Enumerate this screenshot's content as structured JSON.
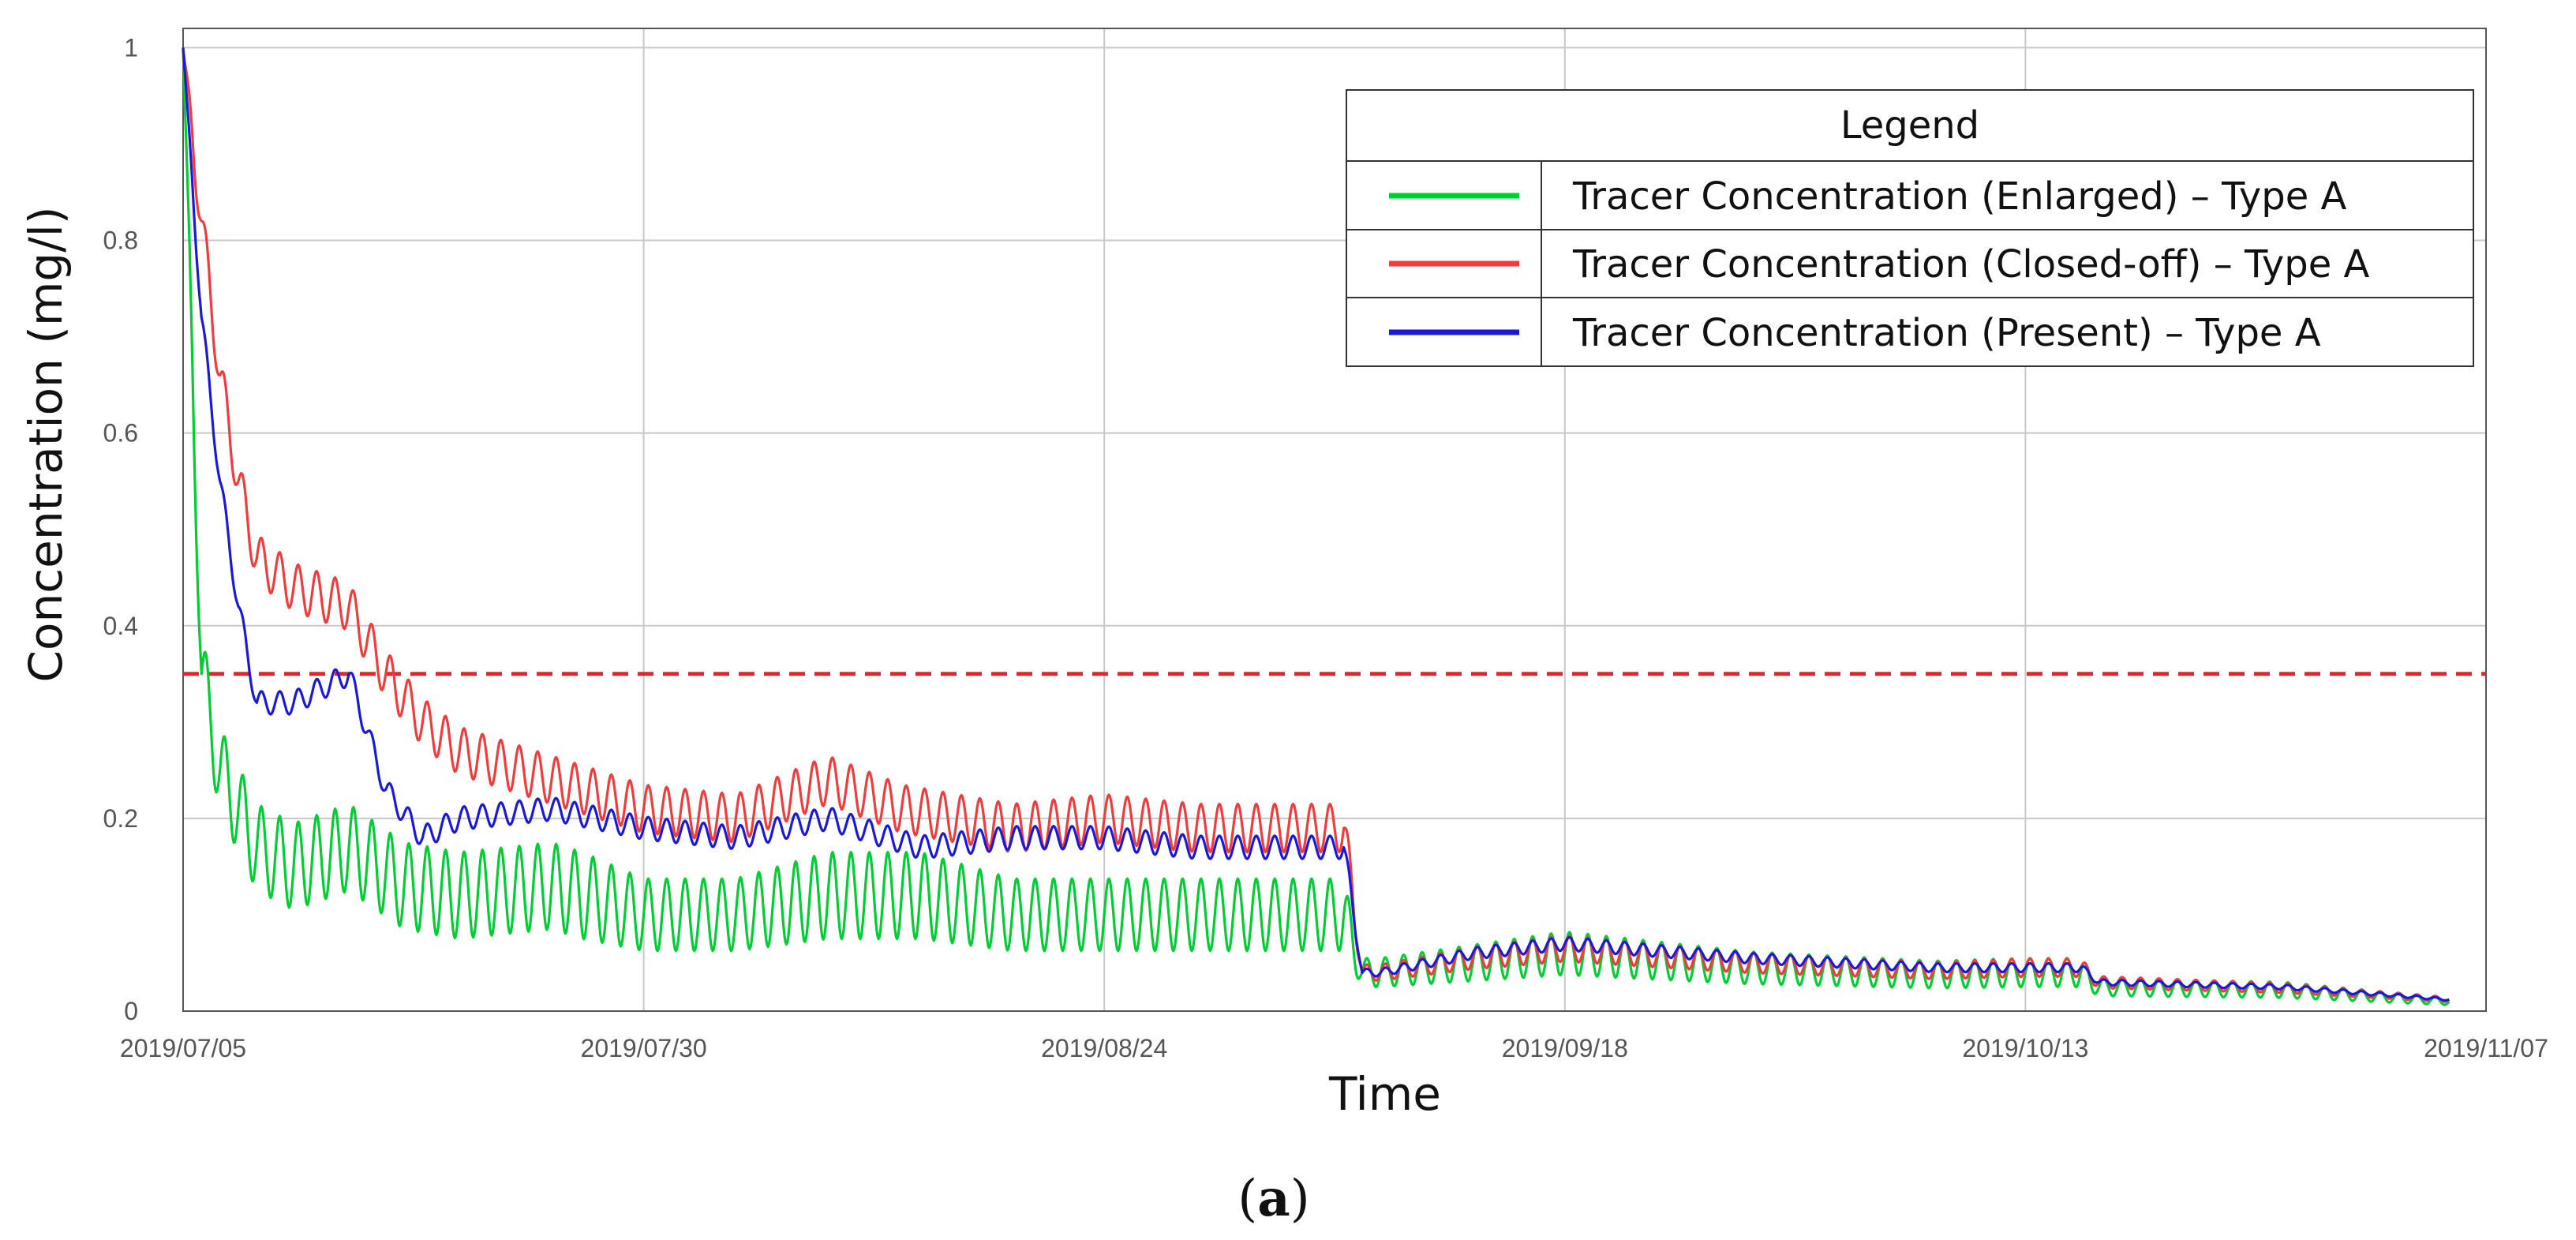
{
  "chart_data": {
    "type": "line",
    "title": "",
    "xlabel": "Time",
    "ylabel": "Concentration (mg/l)",
    "panel_label": "a",
    "x_ticks": [
      "2019/07/05",
      "2019/07/30",
      "2019/08/24",
      "2019/09/18",
      "2019/10/13",
      "2019/11/07"
    ],
    "y_ticks": [
      "0",
      "0.2",
      "0.4",
      "0.6",
      "0.8",
      "1"
    ],
    "xlim": [
      "2019/07/05",
      "2019/11/07"
    ],
    "ylim": [
      0,
      1.02
    ],
    "grid": true,
    "legend": {
      "title": "Legend",
      "position": "top-right"
    },
    "reference_line": {
      "y": 0.35,
      "color": "#e8242b",
      "style": "dashed"
    },
    "series": [
      {
        "name": "Tracer Concentration (Enlarged) – Type A",
        "color": "#00cc33",
        "oscillation": {
          "amplitude": 0.045,
          "period_days": 1.0
        },
        "x": [
          "2019/07/05",
          "2019/07/06",
          "2019/07/07",
          "2019/07/09",
          "2019/07/11",
          "2019/07/14",
          "2019/07/17",
          "2019/07/20",
          "2019/07/25",
          "2019/07/30",
          "2019/08/04",
          "2019/08/09",
          "2019/08/14",
          "2019/08/19",
          "2019/08/24",
          "2019/08/29",
          "2019/09/03",
          "2019/09/06",
          "2019/09/07",
          "2019/09/08",
          "2019/09/13",
          "2019/09/18",
          "2019/09/28",
          "2019/10/08",
          "2019/10/13",
          "2019/10/16",
          "2019/10/17",
          "2019/10/27",
          "2019/11/05"
        ],
        "y": [
          1.0,
          0.35,
          0.25,
          0.17,
          0.15,
          0.17,
          0.13,
          0.12,
          0.13,
          0.1,
          0.1,
          0.12,
          0.12,
          0.1,
          0.1,
          0.1,
          0.1,
          0.1,
          0.04,
          0.04,
          0.05,
          0.06,
          0.045,
          0.038,
          0.04,
          0.04,
          0.025,
          0.022,
          0.01
        ]
      },
      {
        "name": "Tracer Concentration (Closed-off) – Type A",
        "color": "#f03c3c",
        "oscillation": {
          "amplitude": 0.025,
          "period_days": 1.0
        },
        "x": [
          "2019/07/05",
          "2019/07/06",
          "2019/07/07",
          "2019/07/08",
          "2019/07/09",
          "2019/07/11",
          "2019/07/14",
          "2019/07/16",
          "2019/07/18",
          "2019/07/20",
          "2019/07/25",
          "2019/07/30",
          "2019/08/04",
          "2019/08/09",
          "2019/08/13",
          "2019/08/19",
          "2019/08/24",
          "2019/08/29",
          "2019/09/06",
          "2019/09/07",
          "2019/09/08",
          "2019/09/13",
          "2019/09/18",
          "2019/09/28",
          "2019/10/08",
          "2019/10/13",
          "2019/10/16",
          "2019/10/17",
          "2019/10/27",
          "2019/11/05"
        ],
        "y": [
          1.0,
          0.82,
          0.66,
          0.55,
          0.47,
          0.44,
          0.42,
          0.35,
          0.3,
          0.27,
          0.24,
          0.21,
          0.2,
          0.24,
          0.21,
          0.19,
          0.2,
          0.19,
          0.19,
          0.04,
          0.04,
          0.055,
          0.065,
          0.05,
          0.042,
          0.045,
          0.045,
          0.03,
          0.024,
          0.012
        ]
      },
      {
        "name": "Tracer Concentration (Present) – Type A",
        "color": "#1a1ad6",
        "oscillation": {
          "amplitude": 0.012,
          "period_days": 1.0
        },
        "x": [
          "2019/07/05",
          "2019/07/06",
          "2019/07/07",
          "2019/07/08",
          "2019/07/09",
          "2019/07/11",
          "2019/07/13",
          "2019/07/14",
          "2019/07/16",
          "2019/07/18",
          "2019/07/20",
          "2019/07/25",
          "2019/07/30",
          "2019/08/04",
          "2019/08/09",
          "2019/08/14",
          "2019/08/19",
          "2019/08/24",
          "2019/08/29",
          "2019/09/06",
          "2019/09/07",
          "2019/09/08",
          "2019/09/13",
          "2019/09/18",
          "2019/09/28",
          "2019/10/08",
          "2019/10/13",
          "2019/10/16",
          "2019/10/17",
          "2019/10/27",
          "2019/11/05"
        ],
        "y": [
          1.0,
          0.72,
          0.55,
          0.42,
          0.32,
          0.32,
          0.34,
          0.35,
          0.23,
          0.18,
          0.2,
          0.21,
          0.19,
          0.18,
          0.2,
          0.17,
          0.18,
          0.18,
          0.17,
          0.17,
          0.04,
          0.04,
          0.06,
          0.07,
          0.055,
          0.045,
          0.045,
          0.045,
          0.03,
          0.025,
          0.012
        ]
      }
    ]
  }
}
